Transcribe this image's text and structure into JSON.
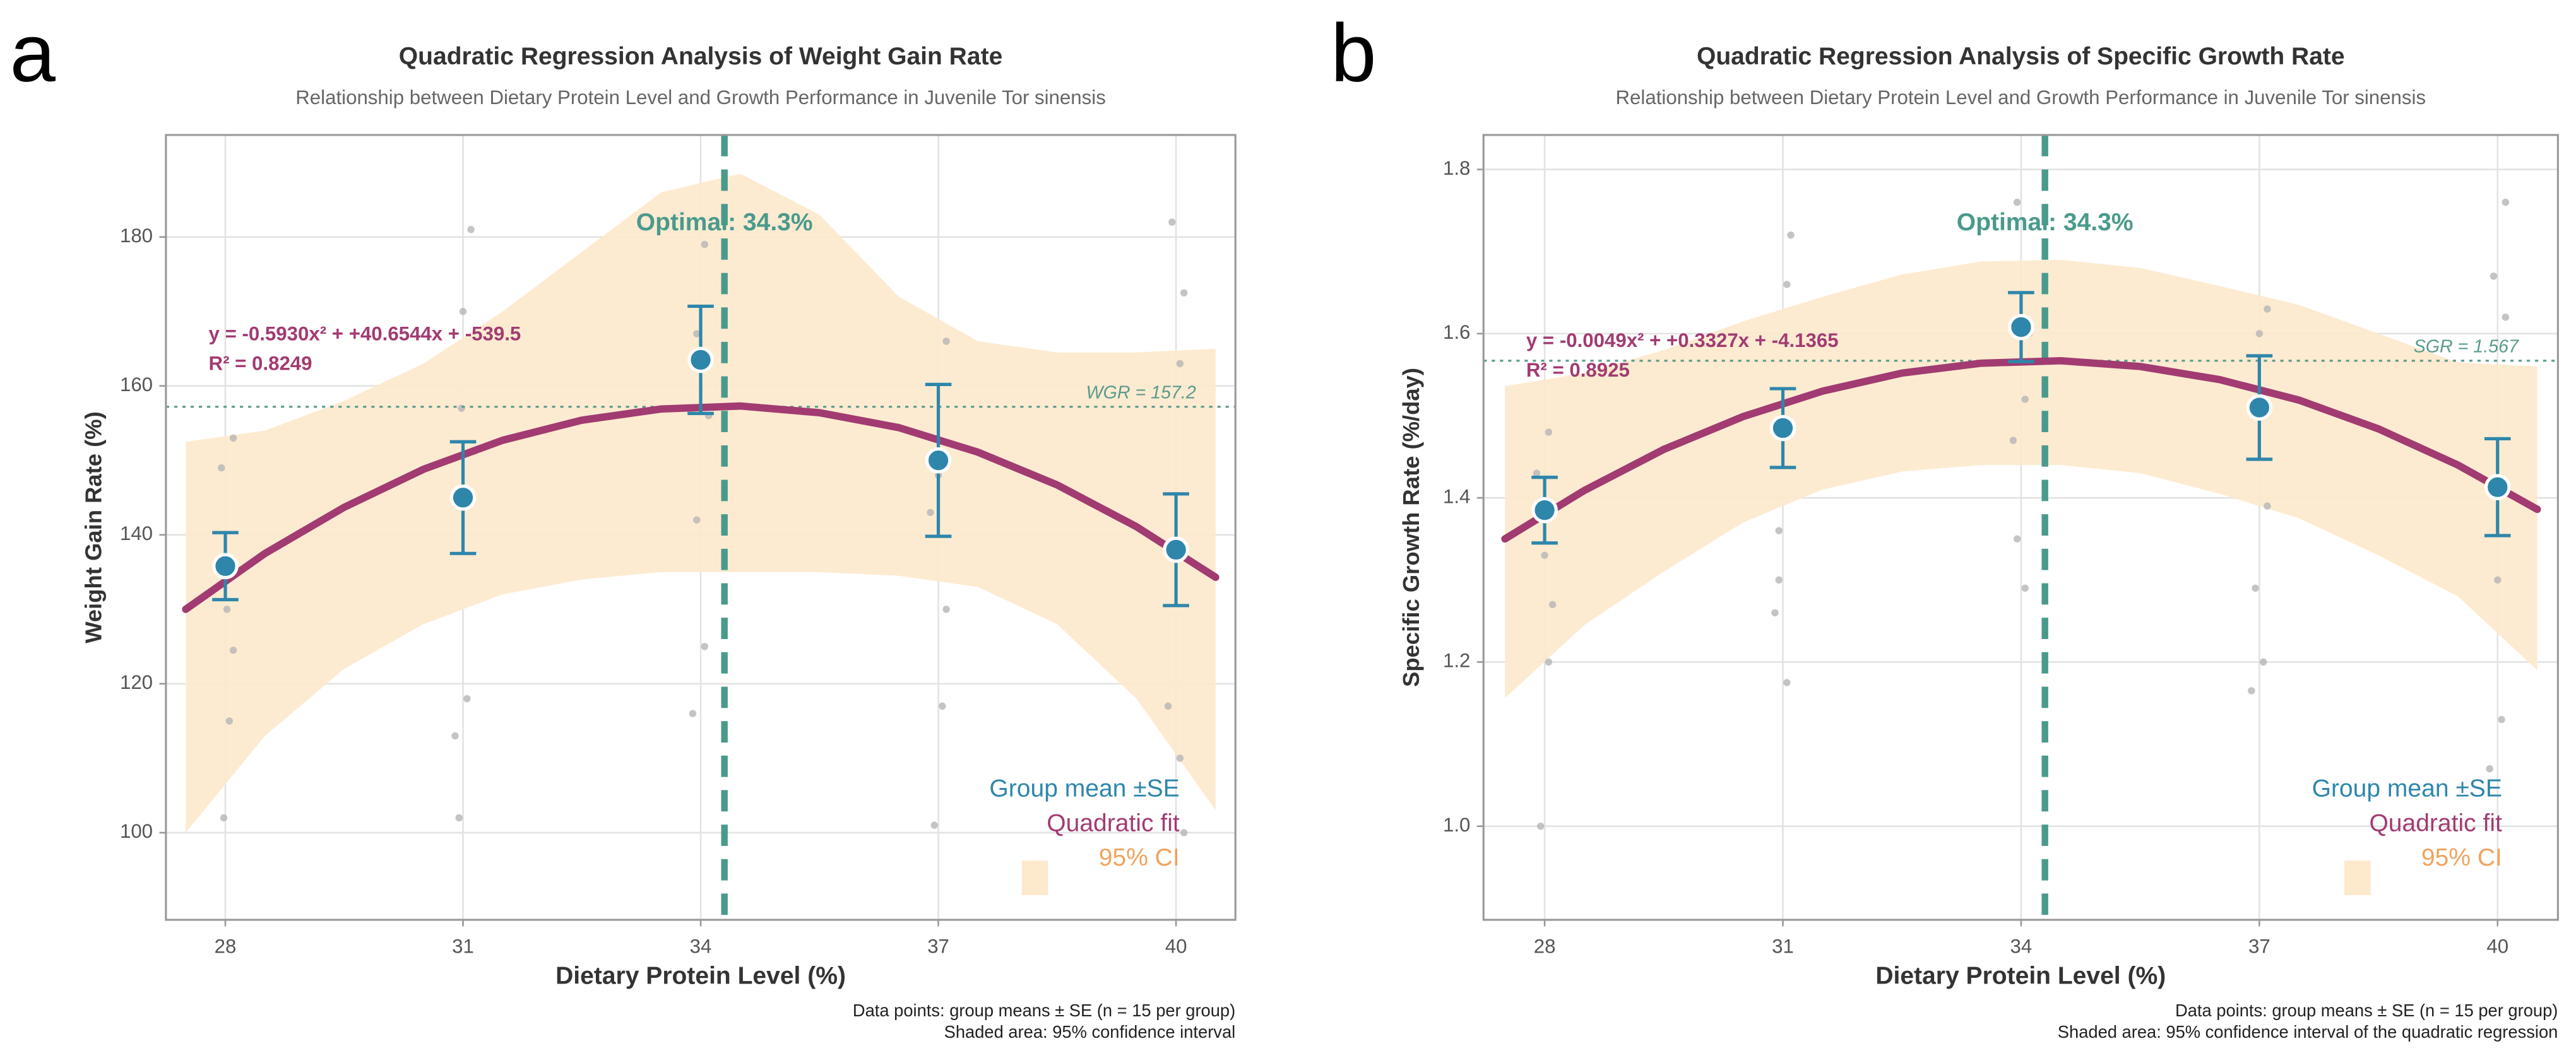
{
  "chart_data": [
    {
      "type": "regression",
      "panel_label": "a",
      "title": "Quadratic Regression Analysis of Weight Gain Rate",
      "subtitle": "Relationship between Dietary Protein Level and Growth Performance in Juvenile Tor sinensis",
      "x_label": "Dietary Protein Level (%)",
      "y_label": "Weight Gain Rate (%)",
      "x": [
        28,
        31,
        34,
        37,
        40
      ],
      "xlim": [
        27.25,
        40.75
      ],
      "xticks": [
        28,
        31,
        34,
        37,
        40
      ],
      "ylim": [
        88.3,
        193.7
      ],
      "yticks": [
        100,
        120,
        140,
        160,
        180
      ],
      "grid": true,
      "legend": "lower right",
      "series": [
        {
          "name": "Group mean ±SE",
          "color": "#2e86ab",
          "values": [
            135.8,
            145,
            163.5,
            150,
            138
          ],
          "errors": [
            4.5,
            7.5,
            7.2,
            10.2,
            7.5
          ]
        },
        {
          "name": "Quadratic fit",
          "color": "#a23b72",
          "x": [
            27.5,
            28.5,
            29.5,
            30.5,
            31.5,
            32.5,
            33.5,
            34.5,
            35.5,
            36.5,
            37.5,
            38.5,
            39.5,
            40.5
          ],
          "values": [
            130.0,
            137.5,
            143.7,
            148.8,
            152.7,
            155.4,
            156.9,
            157.3,
            156.4,
            154.4,
            151.1,
            146.7,
            141.1,
            134.3
          ]
        },
        {
          "name": "95% CI",
          "color": "#fde9cc",
          "text_color": "#f0a35e",
          "x": [
            27.5,
            28.5,
            29.5,
            30.5,
            31.5,
            32.5,
            33.5,
            34.5,
            35.5,
            36.5,
            37.5,
            38.5,
            39.5,
            40.5
          ],
          "upper": [
            152.5,
            154,
            158,
            163,
            170,
            178,
            186,
            188.5,
            183,
            172,
            166,
            164.5,
            164.5,
            165
          ],
          "lower": [
            100,
            113,
            122,
            128,
            132,
            134,
            135,
            135,
            135,
            134.5,
            133,
            128,
            118,
            103
          ]
        }
      ],
      "raw_points": {
        "color": "#b5b5b5",
        "x": [
          27.98,
          28.05,
          28.1,
          27.95,
          28.1,
          28.02,
          30.95,
          31.05,
          30.9,
          31.1,
          31,
          30.98,
          33.9,
          34.05,
          33.95,
          34.1,
          33.95,
          34.05,
          36.95,
          37.05,
          37.1,
          36.9,
          37.1,
          37,
          39.95,
          40.1,
          40.05,
          39.9,
          40.05,
          40.1
        ],
        "y": [
          102,
          115,
          124.5,
          149,
          153,
          130,
          102,
          118,
          113,
          181,
          170,
          157,
          116,
          125,
          142,
          156,
          167,
          179,
          101,
          117,
          130,
          143,
          166,
          148,
          182,
          172.5,
          163,
          117,
          110,
          100
        ]
      },
      "optimal": {
        "value": 34.3,
        "label": "Optimal: 34.3%",
        "color": "#4a9a8c"
      },
      "reference": {
        "value": 157.2,
        "label": "WGR = 157.2",
        "color": "#5a9a8c"
      },
      "equation": "y = -0.5930x² + +40.6544x + -539.5",
      "r_squared": "R² = 0.8249",
      "notes": [
        "Data points: group means ± SE (n = 15 per group)",
        "Shaded area: 95% confidence interval"
      ]
    },
    {
      "type": "regression",
      "panel_label": "b",
      "title": "Quadratic Regression Analysis of Specific Growth Rate",
      "subtitle": "Relationship between Dietary Protein Level and Growth Performance in Juvenile Tor sinensis",
      "x_label": "Dietary Protein Level (%)",
      "y_label": "Specific Growth Rate (%/day)",
      "x": [
        28,
        31,
        34,
        37,
        40
      ],
      "xlim": [
        27.23,
        40.76
      ],
      "xticks": [
        28,
        31,
        34,
        37,
        40
      ],
      "ylim": [
        0.886,
        1.842
      ],
      "yticks": [
        {
          "value": 1,
          "label": "1.0"
        },
        1.2,
        1.4,
        1.6,
        1.8
      ],
      "grid": true,
      "legend": "lower right",
      "series": [
        {
          "name": "Group mean ±SE",
          "color": "#2e86ab",
          "values": [
            1.385,
            1.485,
            1.608,
            1.51,
            1.413
          ],
          "errors": [
            0.04,
            0.048,
            0.042,
            0.063,
            0.059
          ]
        },
        {
          "name": "Quadratic fit",
          "color": "#a23b72",
          "x": [
            27.5,
            28.5,
            29.5,
            30.5,
            31.5,
            32.5,
            33.5,
            34.5,
            35.5,
            36.5,
            37.5,
            38.5,
            39.5,
            40.5
          ],
          "values": [
            1.35,
            1.409,
            1.459,
            1.499,
            1.53,
            1.552,
            1.564,
            1.567,
            1.56,
            1.544,
            1.519,
            1.484,
            1.44,
            1.386
          ]
        },
        {
          "name": "95% CI",
          "color": "#fde9cc",
          "text_color": "#f0a35e",
          "x": [
            27.5,
            28.5,
            29.5,
            30.5,
            31.5,
            32.5,
            33.5,
            34.5,
            35.5,
            36.5,
            37.5,
            38.5,
            39.5,
            40.5
          ],
          "upper": [
            1.536,
            1.552,
            1.58,
            1.615,
            1.645,
            1.672,
            1.688,
            1.69,
            1.68,
            1.658,
            1.635,
            1.6,
            1.565,
            1.56
          ],
          "lower": [
            1.156,
            1.245,
            1.31,
            1.37,
            1.41,
            1.432,
            1.44,
            1.44,
            1.43,
            1.405,
            1.375,
            1.33,
            1.28,
            1.19
          ]
        }
      ],
      "raw_points": {
        "color": "#b5b5b5",
        "x": [
          27.95,
          28.05,
          28.1,
          27.9,
          28.05,
          28,
          30.9,
          31.05,
          30.95,
          31.1,
          31.05,
          30.95,
          33.9,
          34.05,
          33.95,
          34.1,
          33.95,
          34.05,
          36.9,
          37.05,
          37.1,
          36.95,
          37.1,
          37,
          39.9,
          40.05,
          40.1,
          39.95,
          40.1,
          40
        ],
        "y": [
          1.0,
          1.2,
          1.27,
          1.43,
          1.48,
          1.33,
          1.26,
          1.175,
          1.3,
          1.72,
          1.66,
          1.36,
          1.47,
          1.29,
          1.35,
          1.6,
          1.76,
          1.52,
          1.165,
          1.2,
          1.39,
          1.29,
          1.63,
          1.6,
          1.07,
          1.13,
          1.76,
          1.67,
          1.62,
          1.3
        ]
      },
      "optimal": {
        "value": 34.3,
        "label": "Optimal: 34.3%",
        "color": "#4a9a8c"
      },
      "reference": {
        "value": 1.567,
        "label": "SGR = 1.567",
        "color": "#5a9a8c"
      },
      "equation": "y = -0.0049x² + +0.3327x + -4.1365",
      "r_squared": "R² = 0.8925",
      "notes": [
        "Data points: group means ± SE (n = 15 per group)",
        "Shaded area: 95% confidence interval of the quadratic regression"
      ]
    }
  ]
}
